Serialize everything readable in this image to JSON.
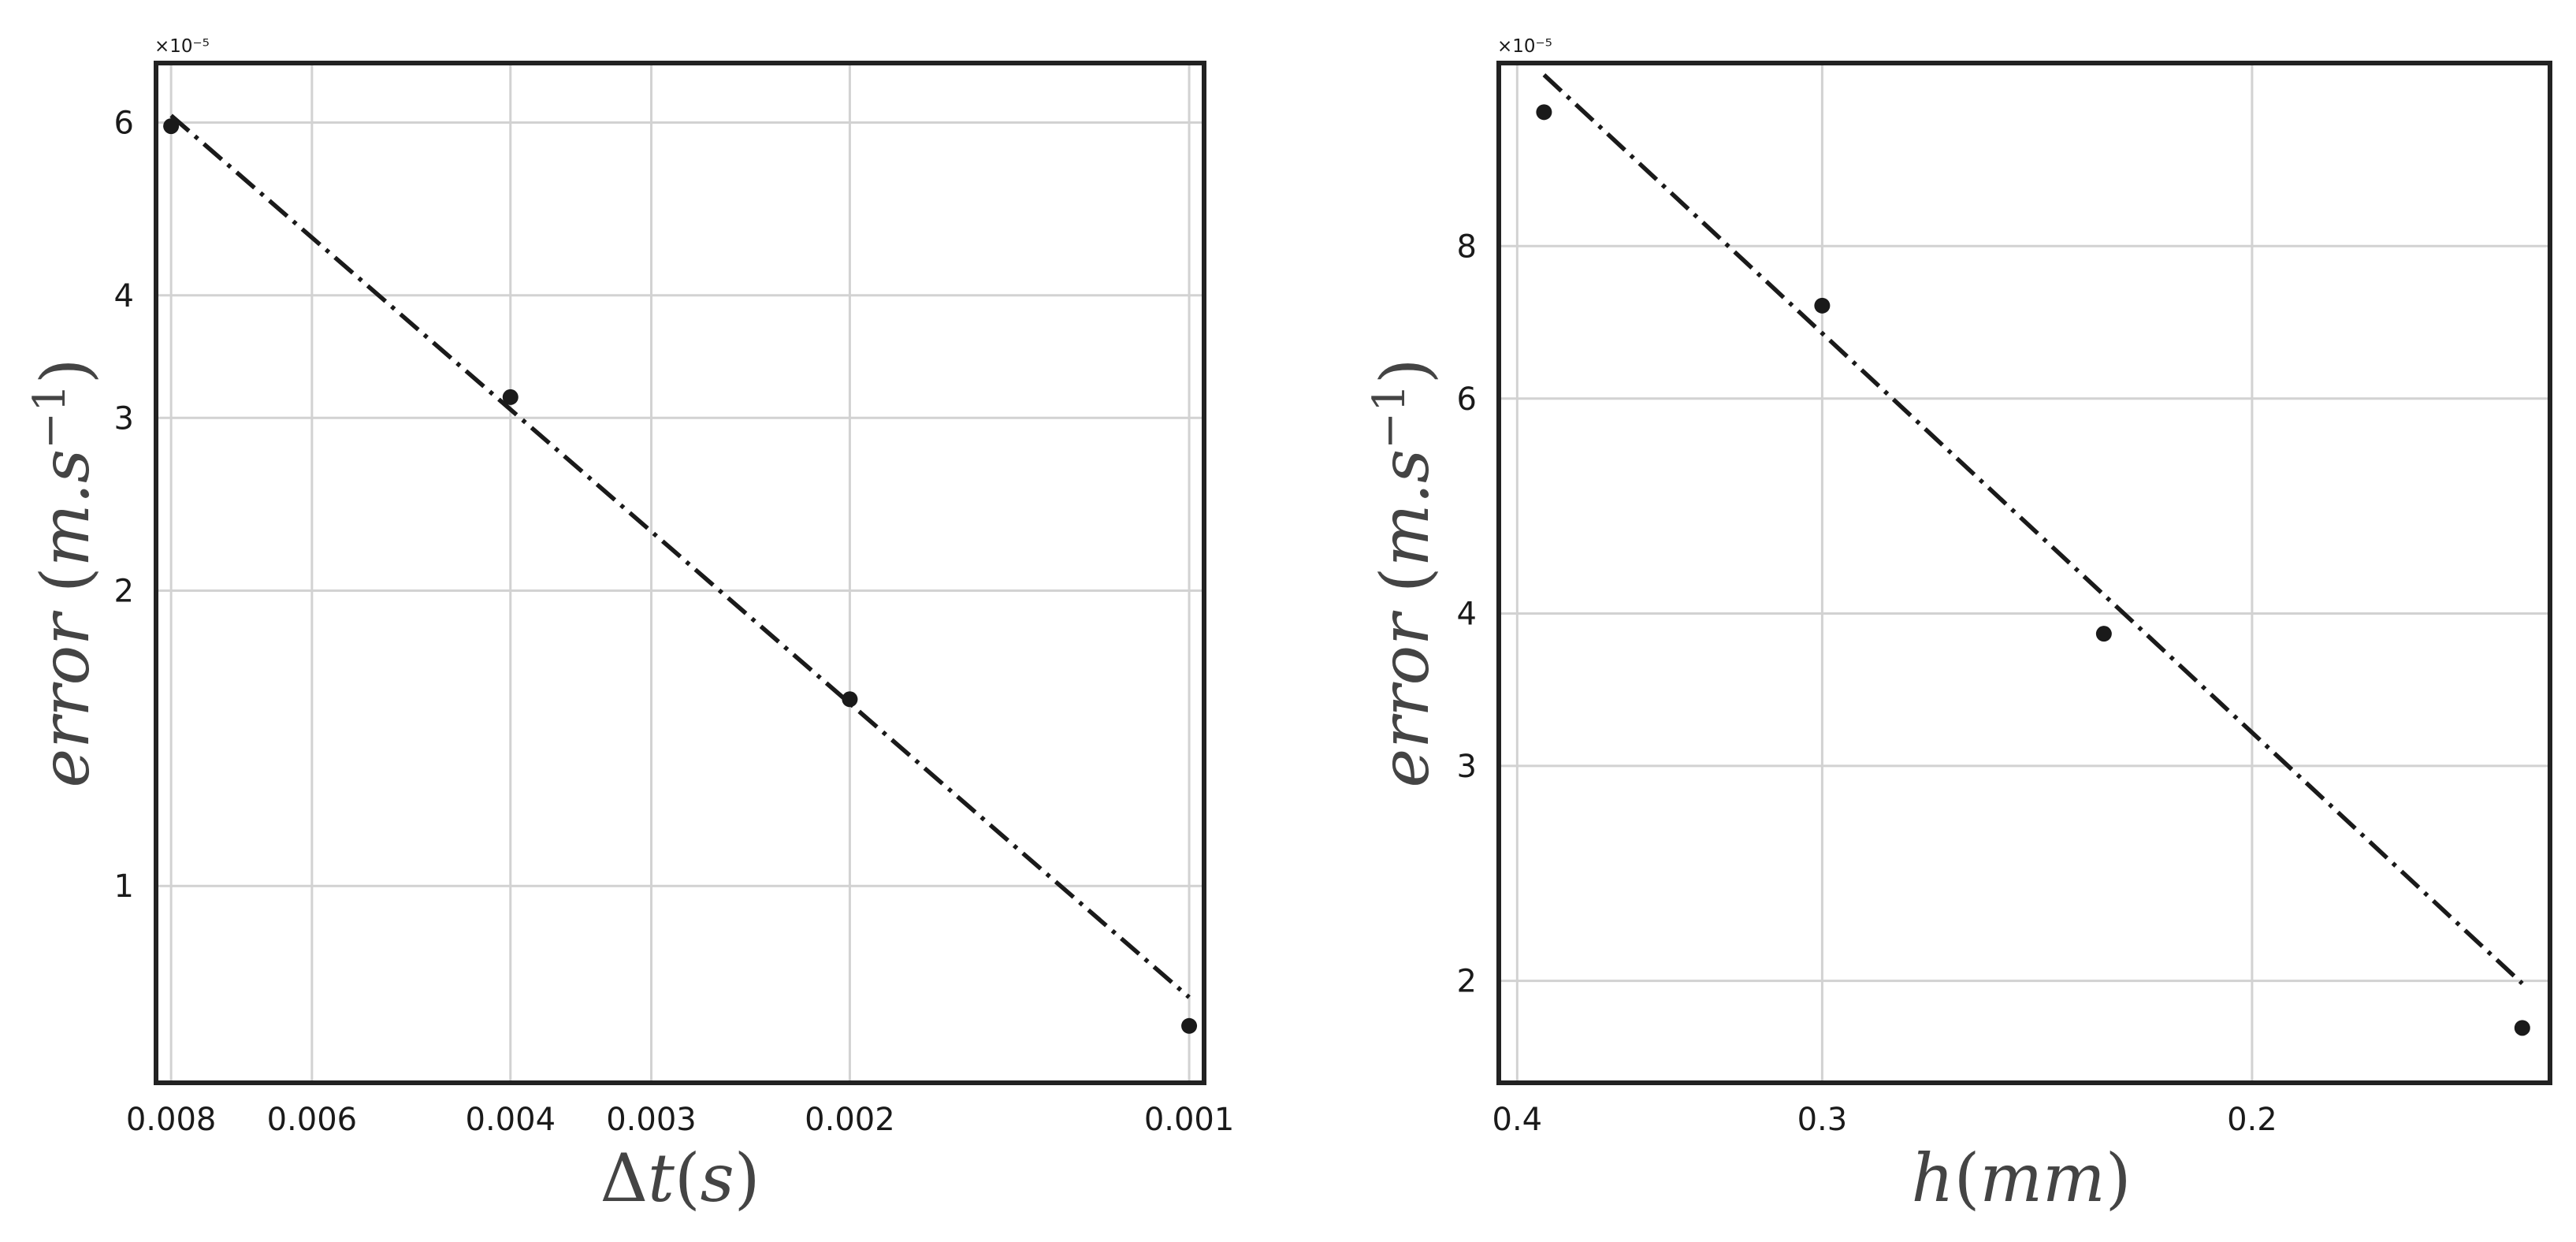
{
  "chart_data": [
    {
      "type": "scatter",
      "xscale": "log",
      "yscale": "log",
      "x_inverted": true,
      "xlabel": "Δt(s)",
      "ylabel": "error(m.s⁻¹)",
      "y_offset_text": "×10⁻⁵",
      "xticks": [
        0.008,
        0.006,
        0.004,
        0.003,
        0.002,
        0.001
      ],
      "xtick_labels": [
        "0.008",
        "0.006",
        "0.004",
        "0.003",
        "0.002",
        "0.001"
      ],
      "yticks": [
        1e-05,
        2e-05,
        3e-05,
        4e-05,
        6e-05
      ],
      "ytick_labels": [
        "1",
        "2",
        "3",
        "4",
        "6"
      ],
      "xlim": [
        0.00825,
        0.00097
      ],
      "ylim": [
        6.3e-06,
        6.9e-05
      ],
      "grid": true,
      "series": [
        {
          "kind": "points",
          "x": [
            0.008,
            0.004,
            0.002,
            0.001
          ],
          "y": [
            5.95e-05,
            3.15e-05,
            1.55e-05,
            7.2e-06
          ]
        },
        {
          "kind": "fit-line",
          "style": "dashdot",
          "x": [
            0.008,
            0.001
          ],
          "y": [
            6.1e-05,
            7.7e-06
          ]
        }
      ]
    },
    {
      "type": "scatter",
      "xscale": "log",
      "yscale": "log",
      "x_inverted": true,
      "xlabel": "h(mm)",
      "ylabel": "error(m.s⁻¹)",
      "y_offset_text": "×10⁻⁵",
      "xticks": [
        0.4,
        0.3,
        0.2
      ],
      "xtick_labels": [
        "0.4",
        "0.3",
        "0.2"
      ],
      "yticks": [
        2e-05,
        3e-05,
        4e-05,
        6e-05,
        8e-05
      ],
      "ytick_labels": [
        "2",
        "3",
        "4",
        "6",
        "8"
      ],
      "xlim": [
        0.407,
        0.151
      ],
      "ylim": [
        1.65e-05,
        0.000113
      ],
      "grid": true,
      "series": [
        {
          "kind": "points",
          "x": [
            0.39,
            0.3,
            0.23,
            0.155
          ],
          "y": [
            0.000103,
            7.15e-05,
            3.85e-05,
            1.83e-05
          ]
        },
        {
          "kind": "fit-line",
          "style": "dashdot",
          "x": [
            0.39,
            0.155
          ],
          "y": [
            0.0001105,
            1.99e-05
          ]
        }
      ]
    }
  ]
}
